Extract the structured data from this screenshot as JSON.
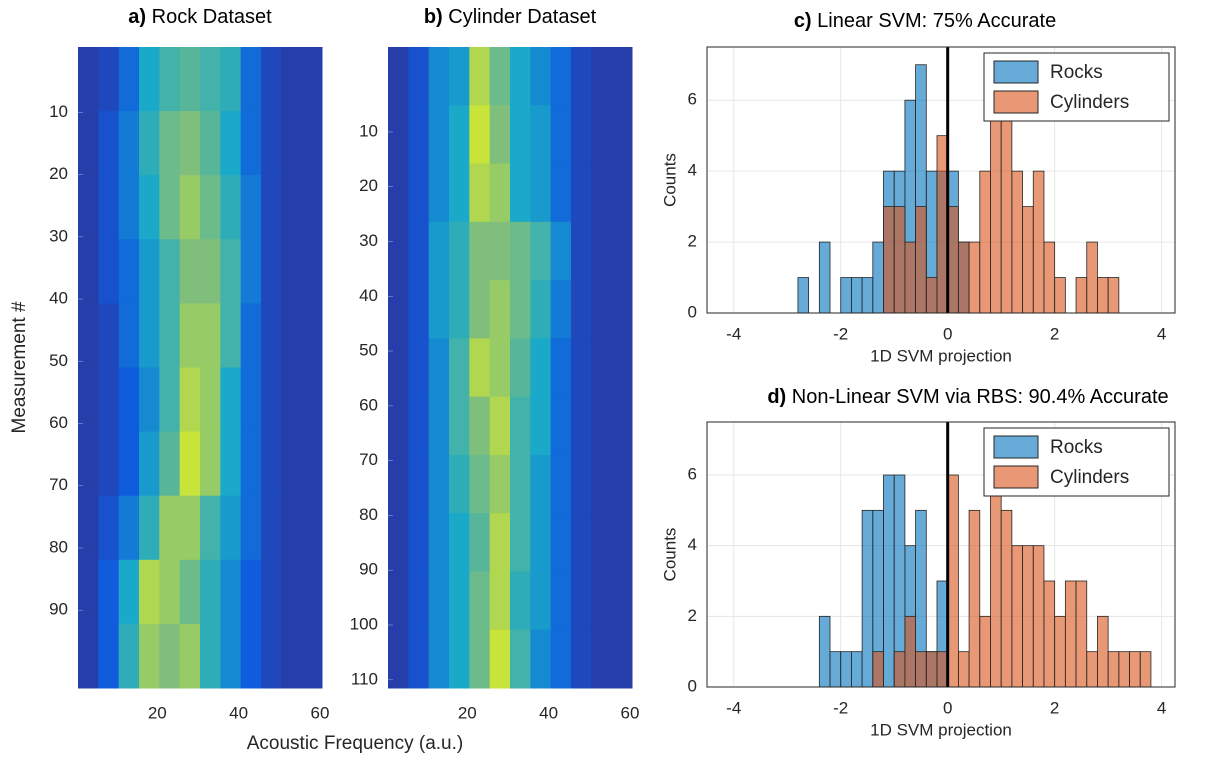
{
  "chart_data": [
    {
      "type": "heatmap",
      "panel": "a)",
      "title": "Rock Dataset",
      "xlabel": "Acoustic Frequency (a.u.)",
      "ylabel": "Measurement #",
      "xlim": [
        0.5,
        60.5
      ],
      "ylim": [
        -0.5,
        102.5
      ],
      "xticks": [
        20,
        40,
        60
      ],
      "yticks": [
        10,
        20,
        30,
        40,
        50,
        60,
        70,
        80,
        90
      ],
      "colormap": [
        "#352a87",
        "#0f5cdd",
        "#1aa9c9",
        "#7fbf7b",
        "#f9fb0e"
      ],
      "clim": [
        0,
        1
      ],
      "z": [
        [
          0.1,
          0.15,
          0.3,
          0.5,
          0.6,
          0.65,
          0.6,
          0.55,
          0.3,
          0.15,
          0.1,
          0.1
        ],
        [
          0.1,
          0.2,
          0.35,
          0.55,
          0.7,
          0.75,
          0.65,
          0.5,
          0.3,
          0.15,
          0.1,
          0.1
        ],
        [
          0.1,
          0.2,
          0.35,
          0.5,
          0.7,
          0.8,
          0.7,
          0.55,
          0.35,
          0.15,
          0.1,
          0.1
        ],
        [
          0.1,
          0.2,
          0.3,
          0.45,
          0.6,
          0.75,
          0.75,
          0.6,
          0.35,
          0.15,
          0.1,
          0.1
        ],
        [
          0.1,
          0.15,
          0.3,
          0.45,
          0.6,
          0.8,
          0.8,
          0.6,
          0.3,
          0.15,
          0.1,
          0.1
        ],
        [
          0.1,
          0.15,
          0.25,
          0.4,
          0.6,
          0.85,
          0.8,
          0.5,
          0.3,
          0.15,
          0.1,
          0.1
        ],
        [
          0.1,
          0.15,
          0.25,
          0.45,
          0.65,
          0.9,
          0.8,
          0.5,
          0.3,
          0.15,
          0.1,
          0.1
        ],
        [
          0.1,
          0.2,
          0.35,
          0.55,
          0.8,
          0.8,
          0.6,
          0.45,
          0.3,
          0.15,
          0.1,
          0.1
        ],
        [
          0.1,
          0.25,
          0.5,
          0.85,
          0.8,
          0.7,
          0.55,
          0.4,
          0.25,
          0.15,
          0.1,
          0.1
        ],
        [
          0.1,
          0.25,
          0.55,
          0.8,
          0.75,
          0.8,
          0.55,
          0.4,
          0.25,
          0.15,
          0.1,
          0.1
        ]
      ]
    },
    {
      "type": "heatmap",
      "panel": "b)",
      "title": "Cylinder Dataset",
      "xlim": [
        0.5,
        60.5
      ],
      "ylim": [
        -5.5,
        111.5
      ],
      "xticks": [
        20,
        40,
        60
      ],
      "yticks": [
        10,
        20,
        30,
        40,
        50,
        60,
        70,
        80,
        90,
        100,
        110
      ],
      "colormap": [
        "#352a87",
        "#0f5cdd",
        "#1aa9c9",
        "#7fbf7b",
        "#f9fb0e"
      ],
      "clim": [
        0,
        1
      ],
      "z": [
        [
          0.1,
          0.2,
          0.4,
          0.45,
          0.85,
          0.7,
          0.5,
          0.4,
          0.3,
          0.15,
          0.1,
          0.1
        ],
        [
          0.1,
          0.2,
          0.4,
          0.5,
          0.9,
          0.75,
          0.5,
          0.45,
          0.3,
          0.15,
          0.1,
          0.1
        ],
        [
          0.1,
          0.2,
          0.4,
          0.5,
          0.85,
          0.8,
          0.5,
          0.45,
          0.3,
          0.15,
          0.1,
          0.1
        ],
        [
          0.1,
          0.2,
          0.45,
          0.55,
          0.75,
          0.75,
          0.7,
          0.6,
          0.4,
          0.15,
          0.1,
          0.1
        ],
        [
          0.1,
          0.2,
          0.45,
          0.55,
          0.75,
          0.8,
          0.7,
          0.55,
          0.35,
          0.15,
          0.1,
          0.1
        ],
        [
          0.1,
          0.2,
          0.4,
          0.6,
          0.85,
          0.8,
          0.65,
          0.5,
          0.3,
          0.15,
          0.1,
          0.1
        ],
        [
          0.1,
          0.2,
          0.4,
          0.6,
          0.75,
          0.85,
          0.6,
          0.5,
          0.3,
          0.15,
          0.1,
          0.1
        ],
        [
          0.1,
          0.2,
          0.4,
          0.55,
          0.7,
          0.8,
          0.6,
          0.45,
          0.3,
          0.15,
          0.1,
          0.1
        ],
        [
          0.1,
          0.2,
          0.4,
          0.5,
          0.65,
          0.85,
          0.6,
          0.45,
          0.3,
          0.15,
          0.1,
          0.1
        ],
        [
          0.1,
          0.2,
          0.4,
          0.5,
          0.7,
          0.85,
          0.55,
          0.45,
          0.3,
          0.15,
          0.1,
          0.1
        ],
        [
          0.1,
          0.2,
          0.4,
          0.5,
          0.7,
          0.9,
          0.6,
          0.4,
          0.3,
          0.15,
          0.1,
          0.1
        ]
      ]
    },
    {
      "type": "histogram",
      "panel": "c)",
      "title": "Linear SVM: 75% Accurate",
      "xlabel": "1D SVM projection",
      "ylabel": "Counts",
      "xlim": [
        -4.5,
        4.25
      ],
      "ylim": [
        0,
        7.5
      ],
      "xticks": [
        -4,
        -2,
        0,
        2,
        4
      ],
      "yticks": [
        0,
        2,
        4,
        6
      ],
      "grid": true,
      "vline": 0,
      "legend": "northeast",
      "alpha": 0.6,
      "bins": [
        -2.8,
        -2.6,
        -2.4,
        -2.2,
        -2.0,
        -1.8,
        -1.6,
        -1.4,
        -1.2,
        -1.0,
        -0.8,
        -0.6,
        -0.4,
        -0.2,
        0.0,
        0.2,
        0.4,
        0.6,
        0.8,
        1.0,
        1.2,
        1.4,
        1.6,
        1.8,
        2.0,
        2.2,
        2.4,
        2.6,
        2.8,
        3.0,
        3.2
      ],
      "series": [
        {
          "name": "Rocks",
          "color": "#0072bd",
          "values": [
            1,
            0,
            2,
            0,
            1,
            1,
            1,
            2,
            4,
            4,
            6,
            7,
            4,
            4,
            4,
            2,
            0,
            0,
            0,
            0,
            0,
            0,
            0,
            0,
            0,
            0,
            0,
            0,
            0,
            0
          ]
        },
        {
          "name": "Cylinders",
          "color": "#d95319",
          "values": [
            0,
            0,
            0,
            0,
            0,
            0,
            0,
            0,
            3,
            3,
            2,
            3,
            1,
            5,
            3,
            2,
            2,
            4,
            6,
            6,
            4,
            3,
            4,
            2,
            1,
            0,
            1,
            2,
            1,
            1
          ]
        }
      ]
    },
    {
      "type": "histogram",
      "panel": "d)",
      "title": "Non-Linear SVM via RBS: 90.4% Accurate",
      "xlabel": "1D SVM projection",
      "ylabel": "Counts",
      "xlim": [
        -4.5,
        4.25
      ],
      "ylim": [
        0,
        7.5
      ],
      "xticks": [
        -4,
        -2,
        0,
        2,
        4
      ],
      "yticks": [
        0,
        2,
        4,
        6
      ],
      "grid": true,
      "vline": 0,
      "legend": "northeast",
      "alpha": 0.6,
      "bins": [
        -2.4,
        -2.2,
        -2.0,
        -1.8,
        -1.6,
        -1.4,
        -1.2,
        -1.0,
        -0.8,
        -0.6,
        -0.4,
        -0.2,
        0.0,
        0.2,
        0.4,
        0.6,
        0.8,
        1.0,
        1.2,
        1.4,
        1.6,
        1.8,
        2.0,
        2.2,
        2.4,
        2.6,
        2.8,
        3.0,
        3.2,
        3.4,
        3.6,
        3.8
      ],
      "series": [
        {
          "name": "Rocks",
          "color": "#0072bd",
          "values": [
            2,
            1,
            1,
            1,
            5,
            5,
            6,
            6,
            4,
            5,
            1,
            3,
            0,
            0,
            0,
            0,
            0,
            0,
            0,
            0,
            0,
            0,
            0,
            0,
            0,
            0,
            0,
            0,
            0,
            0,
            0
          ]
        },
        {
          "name": "Cylinders",
          "color": "#d95319",
          "values": [
            0,
            0,
            0,
            0,
            0,
            1,
            0,
            1,
            2,
            1,
            1,
            1,
            6,
            1,
            5,
            2,
            6,
            5,
            4,
            4,
            4,
            3,
            2,
            3,
            3,
            1,
            2,
            1,
            1,
            1,
            1
          ]
        }
      ]
    }
  ]
}
